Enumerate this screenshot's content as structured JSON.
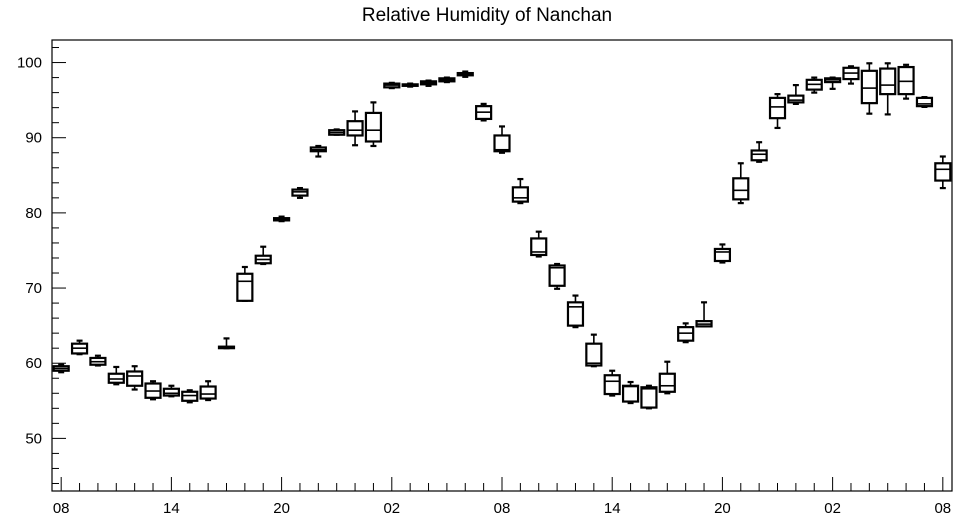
{
  "chart_data": {
    "type": "box",
    "title": "Relative Humidity of Nanchan",
    "xlabel": "",
    "ylabel": "",
    "ylim": [
      43,
      103
    ],
    "y_ticks": [
      50,
      60,
      70,
      80,
      90,
      100
    ],
    "x_tick_labels": [
      "08",
      "14",
      "20",
      "02",
      "08",
      "14",
      "20",
      "02",
      "08"
    ],
    "x_tick_hours": [
      0,
      6,
      12,
      18,
      24,
      30,
      36,
      42,
      48
    ],
    "x_range_hours": [
      -0.5,
      48.5
    ],
    "grid": false,
    "boxes": [
      {
        "t": 0,
        "min": 58.8,
        "q1": 59.0,
        "median": 59.3,
        "q3": 59.6,
        "max": 59.8
      },
      {
        "t": 1,
        "min": 61.2,
        "q1": 61.3,
        "median": 62.0,
        "q3": 62.6,
        "max": 63.0
      },
      {
        "t": 2,
        "min": 59.7,
        "q1": 59.8,
        "median": 60.2,
        "q3": 60.7,
        "max": 61.0
      },
      {
        "t": 3,
        "min": 57.2,
        "q1": 57.4,
        "median": 57.9,
        "q3": 58.6,
        "max": 59.5
      },
      {
        "t": 4,
        "min": 56.5,
        "q1": 57.0,
        "median": 58.3,
        "q3": 58.9,
        "max": 59.6
      },
      {
        "t": 5,
        "min": 55.2,
        "q1": 55.4,
        "median": 56.3,
        "q3": 57.3,
        "max": 57.6
      },
      {
        "t": 6,
        "min": 55.6,
        "q1": 55.7,
        "median": 56.0,
        "q3": 56.6,
        "max": 57.0
      },
      {
        "t": 7,
        "min": 54.8,
        "q1": 55.0,
        "median": 55.7,
        "q3": 56.2,
        "max": 56.4
      },
      {
        "t": 8,
        "min": 55.1,
        "q1": 55.3,
        "median": 55.9,
        "q3": 56.9,
        "max": 57.6
      },
      {
        "t": 9,
        "min": 62.0,
        "q1": 62.0,
        "median": 62.2,
        "q3": 62.2,
        "max": 63.3
      },
      {
        "t": 10,
        "min": 68.3,
        "q1": 68.3,
        "median": 70.9,
        "q3": 71.9,
        "max": 72.8
      },
      {
        "t": 11,
        "min": 73.2,
        "q1": 73.3,
        "median": 73.8,
        "q3": 74.3,
        "max": 75.5
      },
      {
        "t": 12,
        "min": 78.9,
        "q1": 79.0,
        "median": 79.1,
        "q3": 79.3,
        "max": 79.5
      },
      {
        "t": 13,
        "min": 82.0,
        "q1": 82.3,
        "median": 82.8,
        "q3": 83.1,
        "max": 83.3
      },
      {
        "t": 14,
        "min": 87.5,
        "q1": 88.2,
        "median": 88.4,
        "q3": 88.7,
        "max": 88.9
      },
      {
        "t": 15,
        "min": 90.4,
        "q1": 90.4,
        "median": 90.7,
        "q3": 91.0,
        "max": 91.1
      },
      {
        "t": 16,
        "min": 89.0,
        "q1": 90.3,
        "median": 91.0,
        "q3": 92.2,
        "max": 93.5
      },
      {
        "t": 17,
        "min": 88.9,
        "q1": 89.5,
        "median": 91.0,
        "q3": 93.3,
        "max": 94.7
      },
      {
        "t": 18,
        "min": 96.6,
        "q1": 96.7,
        "median": 97.0,
        "q3": 97.2,
        "max": 97.3
      },
      {
        "t": 19,
        "min": 96.8,
        "q1": 96.9,
        "median": 97.0,
        "q3": 97.1,
        "max": 97.2
      },
      {
        "t": 20,
        "min": 96.9,
        "q1": 97.1,
        "median": 97.3,
        "q3": 97.5,
        "max": 97.6
      },
      {
        "t": 21,
        "min": 97.4,
        "q1": 97.5,
        "median": 97.7,
        "q3": 97.9,
        "max": 98.0
      },
      {
        "t": 22,
        "min": 98.1,
        "q1": 98.3,
        "median": 98.5,
        "q3": 98.6,
        "max": 98.8
      },
      {
        "t": 23,
        "min": 92.3,
        "q1": 92.5,
        "median": 93.4,
        "q3": 94.2,
        "max": 94.5
      },
      {
        "t": 24,
        "min": 88.0,
        "q1": 88.2,
        "median": 88.4,
        "q3": 90.3,
        "max": 91.5
      },
      {
        "t": 25,
        "min": 81.3,
        "q1": 81.5,
        "median": 82.0,
        "q3": 83.4,
        "max": 84.5
      },
      {
        "t": 26,
        "min": 74.2,
        "q1": 74.4,
        "median": 74.8,
        "q3": 76.6,
        "max": 77.5
      },
      {
        "t": 27,
        "min": 69.9,
        "q1": 70.3,
        "median": 72.7,
        "q3": 73.0,
        "max": 73.2
      },
      {
        "t": 28,
        "min": 64.8,
        "q1": 65.0,
        "median": 67.5,
        "q3": 68.1,
        "max": 69.0
      },
      {
        "t": 29,
        "min": 59.6,
        "q1": 59.7,
        "median": 60.0,
        "q3": 62.6,
        "max": 63.8
      },
      {
        "t": 30,
        "min": 55.7,
        "q1": 55.9,
        "median": 57.6,
        "q3": 58.4,
        "max": 59.0
      },
      {
        "t": 31,
        "min": 54.7,
        "q1": 54.9,
        "median": 56.9,
        "q3": 57.0,
        "max": 57.5
      },
      {
        "t": 32,
        "min": 54.0,
        "q1": 54.1,
        "median": 56.6,
        "q3": 56.8,
        "max": 57.0
      },
      {
        "t": 33,
        "min": 56.0,
        "q1": 56.2,
        "median": 57.0,
        "q3": 58.6,
        "max": 60.2
      },
      {
        "t": 34,
        "min": 62.8,
        "q1": 63.0,
        "median": 64.0,
        "q3": 64.8,
        "max": 65.3
      },
      {
        "t": 35,
        "min": 64.9,
        "q1": 64.9,
        "median": 65.2,
        "q3": 65.6,
        "max": 68.1
      },
      {
        "t": 36,
        "min": 73.4,
        "q1": 73.6,
        "median": 74.8,
        "q3": 75.2,
        "max": 75.8
      },
      {
        "t": 37,
        "min": 81.3,
        "q1": 81.8,
        "median": 83.0,
        "q3": 84.6,
        "max": 86.6
      },
      {
        "t": 38,
        "min": 86.8,
        "q1": 87.0,
        "median": 87.8,
        "q3": 88.3,
        "max": 89.4
      },
      {
        "t": 39,
        "min": 91.3,
        "q1": 92.6,
        "median": 94.1,
        "q3": 95.3,
        "max": 95.8
      },
      {
        "t": 40,
        "min": 94.5,
        "q1": 94.7,
        "median": 95.0,
        "q3": 95.6,
        "max": 97.0
      },
      {
        "t": 41,
        "min": 96.0,
        "q1": 96.4,
        "median": 97.1,
        "q3": 97.7,
        "max": 98.0
      },
      {
        "t": 42,
        "min": 96.5,
        "q1": 97.4,
        "median": 97.7,
        "q3": 97.9,
        "max": 98.0
      },
      {
        "t": 43,
        "min": 97.2,
        "q1": 97.8,
        "median": 98.6,
        "q3": 99.3,
        "max": 99.5
      },
      {
        "t": 44,
        "min": 93.2,
        "q1": 94.6,
        "median": 96.6,
        "q3": 98.9,
        "max": 99.9
      },
      {
        "t": 45,
        "min": 93.1,
        "q1": 95.8,
        "median": 97.0,
        "q3": 99.2,
        "max": 99.9
      },
      {
        "t": 46,
        "min": 95.2,
        "q1": 95.8,
        "median": 97.5,
        "q3": 99.4,
        "max": 99.7
      },
      {
        "t": 47,
        "min": 94.1,
        "q1": 94.2,
        "median": 94.5,
        "q3": 95.3,
        "max": 95.4
      },
      {
        "t": 48,
        "min": 83.3,
        "q1": 84.3,
        "median": 85.8,
        "q3": 86.6,
        "max": 87.5
      }
    ]
  }
}
